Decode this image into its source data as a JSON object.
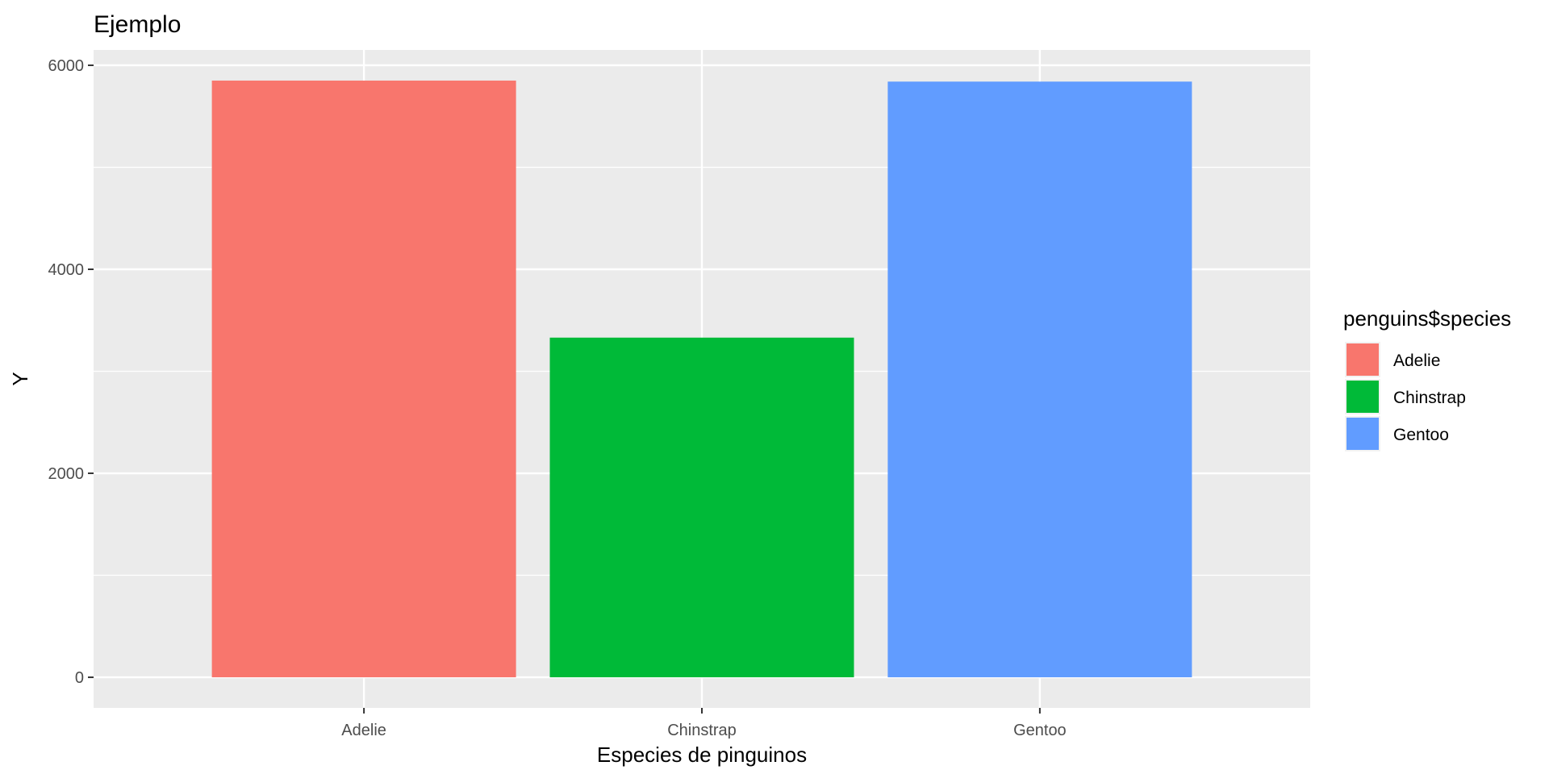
{
  "chart_data": {
    "type": "bar",
    "title": "Ejemplo",
    "xlabel": "Especies de pinguinos",
    "ylabel": "Y",
    "categories": [
      "Adelie",
      "Chinstrap",
      "Gentoo"
    ],
    "values": [
      5850,
      3330,
      5840
    ],
    "ylim": [
      -300,
      6150
    ],
    "yticks": [
      0,
      2000,
      4000,
      6000
    ],
    "ytick_labels": [
      "0",
      "2000",
      "4000",
      "6000"
    ],
    "grid": true,
    "legend": {
      "title": "penguins$species",
      "position": "right",
      "entries": [
        "Adelie",
        "Chinstrap",
        "Gentoo"
      ]
    },
    "colors": [
      "#F8766D",
      "#00BA38",
      "#619CFF"
    ],
    "panel_background": "#EBEBEB",
    "grid_color": "#FFFFFF"
  }
}
